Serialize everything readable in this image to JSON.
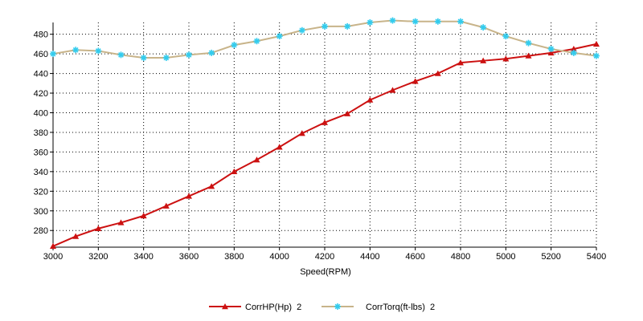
{
  "chart_data": {
    "type": "line",
    "xlabel": "Speed(RPM)",
    "ylabel": "",
    "xlim": [
      3000,
      5400
    ],
    "ylim": [
      263,
      492
    ],
    "x_ticks": [
      3000,
      3200,
      3400,
      3600,
      3800,
      4000,
      4200,
      4400,
      4600,
      4800,
      5000,
      5200,
      5400
    ],
    "y_ticks": [
      280,
      300,
      320,
      340,
      360,
      380,
      400,
      420,
      440,
      460,
      480
    ],
    "grid": true,
    "legend_position": "bottom",
    "x": [
      3000,
      3100,
      3200,
      3300,
      3400,
      3500,
      3600,
      3700,
      3800,
      3900,
      4000,
      4100,
      4200,
      4300,
      4400,
      4500,
      4600,
      4700,
      4800,
      4900,
      5000,
      5100,
      5200,
      5300,
      5400
    ],
    "series": [
      {
        "name": "CorrHP(Hp)  2",
        "color": "#cc1111",
        "marker": "triangle",
        "values": [
          264,
          274,
          282,
          288,
          295,
          305,
          315,
          325,
          340,
          352,
          365,
          379,
          390,
          399,
          413,
          423,
          432,
          440,
          451,
          453,
          455,
          458,
          461,
          465,
          470
        ]
      },
      {
        "name": "CorrTorq(ft-lbs)  2",
        "color": "#c8b48a",
        "marker": "star",
        "marker_color": "#33ccee",
        "values": [
          460,
          464,
          463,
          459,
          456,
          456,
          459,
          461,
          469,
          473,
          478,
          484,
          488,
          488,
          492,
          494,
          493,
          493,
          493,
          487,
          478,
          471,
          465,
          461,
          458
        ]
      }
    ]
  }
}
